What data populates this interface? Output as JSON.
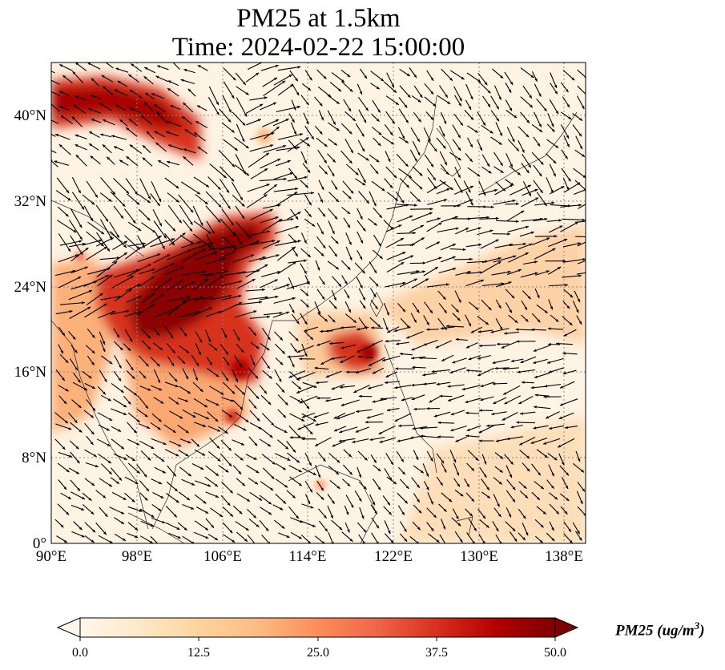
{
  "title": {
    "line1": "PM25 at 1.5km",
    "line2": "Time: 2024-02-22 15:00:00"
  },
  "map": {
    "lon_range": [
      90,
      140
    ],
    "lat_range": [
      0,
      45
    ],
    "x_ticks": [
      "90°E",
      "98°E",
      "106°E",
      "114°E",
      "122°E",
      "130°E",
      "138°E"
    ],
    "y_ticks": [
      "0°",
      "8°N",
      "16°N",
      "24°N",
      "32°N",
      "40°N"
    ],
    "gridlines": "dotted",
    "coastlines": true,
    "wind_vectors": true
  },
  "colorbar": {
    "label_main": "PM25 (ug/m",
    "label_sup": "3",
    "label_end": ")",
    "ticks": [
      "0.0",
      "12.5",
      "25.0",
      "37.5",
      "50.0"
    ],
    "min": 0.0,
    "max": 50.0,
    "extend": "both",
    "colormap": "OrRd",
    "colors": [
      "#fff7ec",
      "#fee8c8",
      "#fdd49e",
      "#fdbb84",
      "#fc8d59",
      "#ef6548",
      "#d7301f",
      "#b30000",
      "#7f0000"
    ]
  }
}
